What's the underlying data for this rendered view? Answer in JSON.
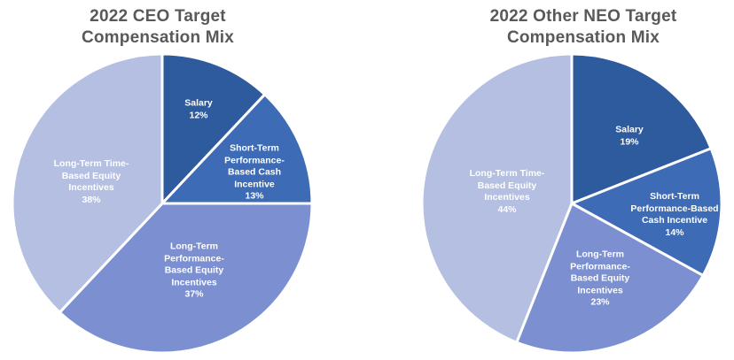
{
  "figure": {
    "background": "#ffffff",
    "title_color": "#595959",
    "label_color": "#ffffff",
    "slice_border_color": "#ffffff"
  },
  "chart_data": [
    {
      "type": "pie",
      "title": "2022 CEO Target Compensation Mix",
      "title_lines": [
        "2022 CEO Target",
        "Compensation Mix"
      ],
      "categories": [
        "Salary",
        "Short-Term Performance-Based Cash Incentive",
        "Long-Term Performance-Based Equity Incentives",
        "Long-Term Time-Based Equity Incentives"
      ],
      "values": [
        12,
        13,
        37,
        38
      ],
      "unit": "%",
      "start_angle_deg": 0,
      "direction": "clockwise",
      "legend": "none",
      "data_labels": "inside",
      "slices": [
        {
          "name": "Salary",
          "value": 12,
          "pct_label": "12%",
          "color": "#2E5A9E",
          "label_lines": [
            "Salary",
            "12%"
          ]
        },
        {
          "name": "Short-Term Performance-Based Cash Incentive",
          "value": 13,
          "pct_label": "13%",
          "color": "#3D6BB5",
          "label_lines": [
            "Short-Term",
            "Performance-",
            "Based Cash",
            "Incentive",
            "13%"
          ]
        },
        {
          "name": "Long-Term Performance-Based Equity Incentives",
          "value": 37,
          "pct_label": "37%",
          "color": "#7C90D1",
          "label_lines": [
            "Long-Term",
            "Performance-",
            "Based Equity",
            "Incentives",
            "37%"
          ]
        },
        {
          "name": "Long-Term Time-Based Equity Incentives",
          "value": 38,
          "pct_label": "38%",
          "color": "#B4BFE2",
          "label_lines": [
            "Long-Term Time-",
            "Based Equity",
            "Incentives",
            "38%"
          ]
        }
      ]
    },
    {
      "type": "pie",
      "title": "2022 Other NEO Target Compensation Mix",
      "title_lines": [
        "2022 Other NEO Target",
        "Compensation Mix"
      ],
      "categories": [
        "Salary",
        "Short-Term Performance-Based Cash Incentive",
        "Long-Term Performance-Based Equity Incentives",
        "Long-Term Time-Based Equity Incentives"
      ],
      "values": [
        19,
        14,
        23,
        44
      ],
      "unit": "%",
      "start_angle_deg": 0,
      "direction": "clockwise",
      "legend": "none",
      "data_labels": "inside",
      "slices": [
        {
          "name": "Salary",
          "value": 19,
          "pct_label": "19%",
          "color": "#2E5A9E",
          "label_lines": [
            "Salary",
            "19%"
          ]
        },
        {
          "name": "Short-Term Performance-Based Cash Incentive",
          "value": 14,
          "pct_label": "14%",
          "color": "#3D6BB5",
          "label_lines": [
            "Short-Term",
            "Performance-Based",
            "Cash Incentive",
            "14%"
          ]
        },
        {
          "name": "Long-Term Performance-Based Equity Incentives",
          "value": 23,
          "pct_label": "23%",
          "color": "#7C90D1",
          "label_lines": [
            "Long-Term",
            "Performance-",
            "Based Equity",
            "Incentives",
            "23%"
          ]
        },
        {
          "name": "Long-Term Time-Based Equity Incentives",
          "value": 44,
          "pct_label": "44%",
          "color": "#B4BFE2",
          "label_lines": [
            "Long-Term Time-",
            "Based Equity",
            "Incentives",
            "44%"
          ]
        }
      ]
    }
  ]
}
